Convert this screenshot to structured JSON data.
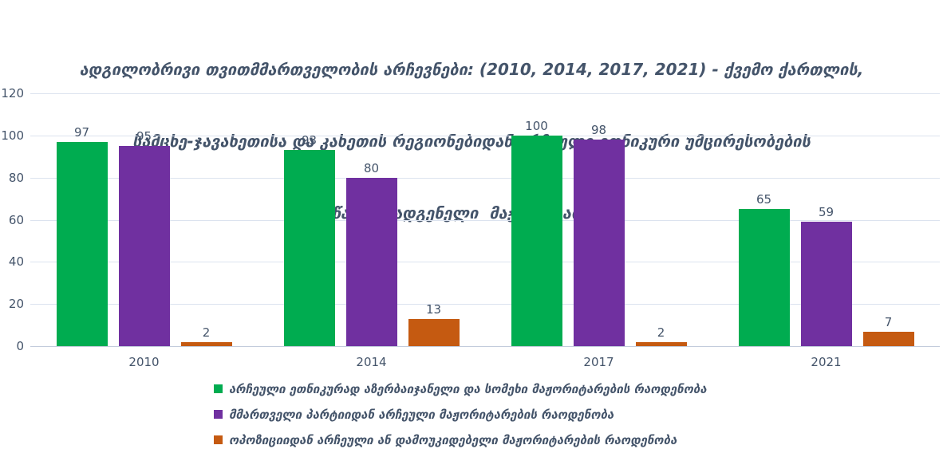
{
  "chart_data": {
    "type": "bar",
    "title": "ადგილობრივი თვითმმართველობის არჩევნები: (2010, 2014, 2017, 2021) - ქვემო ქართლის, სამცხე-ჯავახეთისა და კახეთის რეგიონებიდან არჩეული ეთნიკური უმცირესობების წარმომადგენელი მაჟორიტარები",
    "title_lines": [
      "ადგილობრივი თვითმმართველობის არჩევნები: (2010, 2014, 2017, 2021) - ქვემო ქართლის,",
      "სამცხე-ჯავახეთისა და კახეთის რეგიონებიდან არჩეული ეთნიკური უმცირესობების",
      "წარმომადგენელი  მაჟორიტარები"
    ],
    "categories": [
      "2010",
      "2014",
      "2017",
      "2021"
    ],
    "series": [
      {
        "name": "არჩეული ეთნიკურად აზერბაიჯანელი და სომეხი მაჟორიტარების რაოდენობა",
        "color": "#00AC50",
        "values": [
          97,
          93,
          100,
          65
        ]
      },
      {
        "name": "მმართველი პარტიიდან არჩეული მაჟორიტარების რაოდენობა",
        "color": "#7030A0",
        "values": [
          95,
          80,
          98,
          59
        ]
      },
      {
        "name": "ოპოზიციიდან არჩეული ან დამოუკიდებელი მაჟორიტარების რაოდენობა",
        "color": "#C55A11",
        "values": [
          2,
          13,
          2,
          7
        ]
      }
    ],
    "xlabel": "",
    "ylabel": "",
    "ylim": [
      0,
      120
    ],
    "ytick_step": 20,
    "grid": true,
    "legend_position": "bottom-left",
    "colors": {
      "text": "#44546A",
      "gridline": "#DCE3EF",
      "axis_line": "#C3CCDC",
      "background": "#FFFFFF"
    }
  }
}
